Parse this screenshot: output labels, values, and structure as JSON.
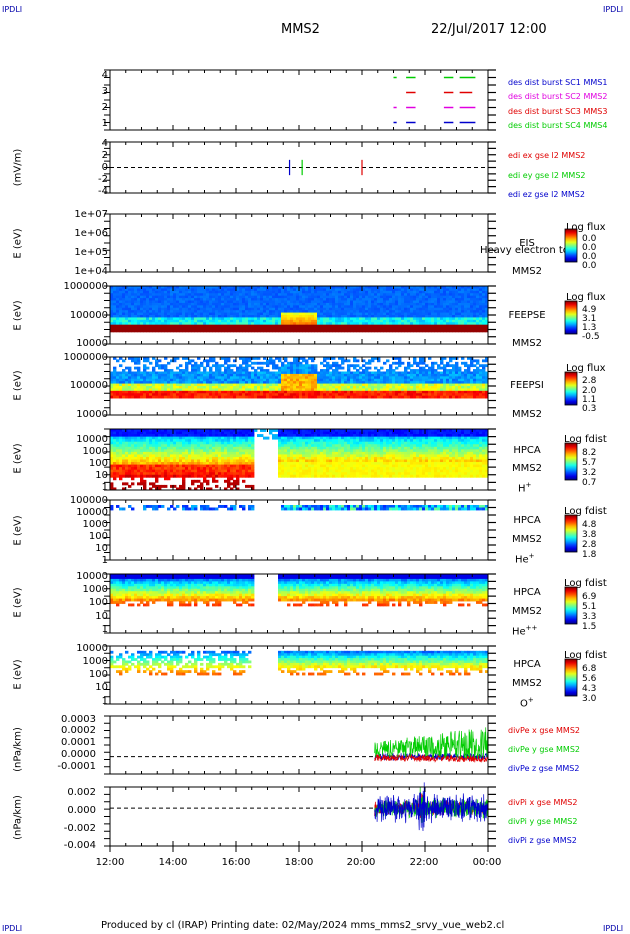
{
  "corners": {
    "tl": "IPDLI",
    "tr": "IPDLI",
    "bl": "IPDLI",
    "br": "IPDLI"
  },
  "header": {
    "spacecraft": "MMS2",
    "datetime": "22/Jul/2017 12:00"
  },
  "footer": "Produced by cl (IRAP)   Printing date: 02/May/2024   mms_mms2_srvy_vue_web2.cl",
  "x_ticks": [
    "12:00",
    "14:00",
    "16:00",
    "18:00",
    "20:00",
    "22:00",
    "00:00"
  ],
  "colors": {
    "red": "#e00000",
    "magenta": "#e000e0",
    "green": "#00cc00",
    "blue": "#0000cc"
  },
  "chart_data": [
    {
      "type": "line",
      "panel": "burst",
      "y_ticks": [
        "4",
        "3",
        "2",
        "1"
      ],
      "legend": [
        "des dist burst SC1 MMS1",
        "des dist burst SC2 MMS2",
        "des dist burst SC3 MMS3",
        "des dist burst SC4 MMS4"
      ],
      "ylim": [
        0.5,
        4.5
      ],
      "series": [
        {
          "level": 4,
          "color": "#00cc00",
          "segments": [
            [
              21.0,
              21.1
            ],
            [
              21.4,
              21.7
            ],
            [
              22.6,
              22.9
            ],
            [
              23.1,
              23.6
            ]
          ]
        },
        {
          "level": 3,
          "color": "#e00000",
          "segments": [
            [
              21.4,
              21.7
            ],
            [
              22.6,
              22.9
            ],
            [
              23.1,
              23.5
            ]
          ]
        },
        {
          "level": 2,
          "color": "#e000e0",
          "segments": [
            [
              21.0,
              21.1
            ],
            [
              21.4,
              21.7
            ],
            [
              22.6,
              22.9
            ],
            [
              23.1,
              23.6
            ]
          ]
        },
        {
          "level": 1,
          "color": "#0000cc",
          "segments": [
            [
              21.0,
              21.1
            ],
            [
              21.4,
              21.7
            ],
            [
              22.6,
              22.9
            ],
            [
              23.1,
              23.6
            ]
          ]
        }
      ]
    },
    {
      "type": "line",
      "panel": "edi",
      "ylabel": "(mV/m)",
      "y_ticks": [
        "4",
        "2",
        "0",
        "-2",
        "-4"
      ],
      "ylim": [
        -5,
        5
      ],
      "legend": [
        "edi ex gse l2 MMS2",
        "edi ey gse l2 MMS2",
        "edi ez gse l2 MMS2"
      ],
      "x_range": [
        12.0,
        17.0
      ]
    },
    {
      "type": "heatmap",
      "panel": "EIS",
      "ylabel": "E (eV)",
      "y_ticks": [
        "1e+07",
        "1e+06",
        "1e+05",
        "1e+04"
      ],
      "instrument": [
        "EIS",
        "MMS2"
      ],
      "overlay_text": "Heavy electron tof",
      "cbar_title": "Log flux",
      "cbar_values": [
        "0.0",
        "0.0",
        "0.0",
        "0.0"
      ]
    },
    {
      "type": "heatmap",
      "panel": "FEEPSE",
      "ylabel": "E (eV)",
      "y_ticks": [
        "1000000",
        "100000",
        "10000"
      ],
      "instrument": [
        "FEEPSE",
        "MMS2"
      ],
      "cbar_title": "Log flux",
      "cbar_values": [
        "4.9",
        "3.1",
        "1.3",
        "-0.5"
      ]
    },
    {
      "type": "heatmap",
      "panel": "FEEPSI",
      "ylabel": "E (eV)",
      "y_ticks": [
        "1000000",
        "100000",
        "10000"
      ],
      "instrument": [
        "FEEPSI",
        "MMS2"
      ],
      "cbar_title": "Log flux",
      "cbar_values": [
        "2.8",
        "2.0",
        "1.1",
        "0.3"
      ]
    },
    {
      "type": "heatmap",
      "panel": "HPCA-H",
      "ylabel": "E (eV)",
      "y_ticks": [
        "10000",
        "1000",
        "100",
        "10",
        "1"
      ],
      "instrument": [
        "HPCA",
        "MMS2"
      ],
      "species": "H",
      "charge": "+",
      "cbar_title": "Log fdist",
      "cbar_values": [
        "8.2",
        "5.7",
        "3.2",
        "0.7"
      ]
    },
    {
      "type": "heatmap",
      "panel": "HPCA-He+",
      "ylabel": "E (eV)",
      "y_ticks": [
        "100000",
        "10000",
        "1000",
        "100",
        "10",
        "1"
      ],
      "instrument": [
        "HPCA",
        "MMS2"
      ],
      "species": "He",
      "charge": "+",
      "cbar_title": "Log fdist",
      "cbar_values": [
        "4.8",
        "3.8",
        "2.8",
        "1.8"
      ]
    },
    {
      "type": "heatmap",
      "panel": "HPCA-He++",
      "ylabel": "E (eV)",
      "y_ticks": [
        "10000",
        "1000",
        "100",
        "10",
        "1"
      ],
      "instrument": [
        "HPCA",
        "MMS2"
      ],
      "species": "He",
      "charge": "++",
      "cbar_title": "Log fdist",
      "cbar_values": [
        "6.9",
        "5.1",
        "3.3",
        "1.5"
      ]
    },
    {
      "type": "heatmap",
      "panel": "HPCA-O",
      "ylabel": "E (eV)",
      "y_ticks": [
        "10000",
        "1000",
        "100",
        "10",
        "1"
      ],
      "instrument": [
        "HPCA",
        "MMS2"
      ],
      "species": "O",
      "charge": "+",
      "cbar_title": "Log fdist",
      "cbar_values": [
        "6.8",
        "5.6",
        "4.3",
        "3.0"
      ]
    },
    {
      "type": "line",
      "panel": "divPe",
      "ylabel": "(nPa/km)",
      "y_ticks": [
        "0.0003",
        "0.0002",
        "0.0001",
        "0.0000",
        "-0.0001"
      ],
      "ylim": [
        -0.00015,
        0.00035
      ],
      "legend": [
        "divPe x gse MMS2",
        "divPe y gse MMS2",
        "divPe z gse MMS2"
      ],
      "x_range": [
        20.4,
        24.0
      ]
    },
    {
      "type": "line",
      "panel": "divPi",
      "ylabel": "(nPa/km)",
      "y_ticks": [
        "0.002",
        "0.000",
        "-0.002",
        "-0.004"
      ],
      "ylim": [
        -0.0045,
        0.0025
      ],
      "legend": [
        "divPi x gse MMS2",
        "divPi y gse MMS2",
        "divPi z gse MMS2"
      ],
      "x_range": [
        20.4,
        24.0
      ]
    }
  ]
}
